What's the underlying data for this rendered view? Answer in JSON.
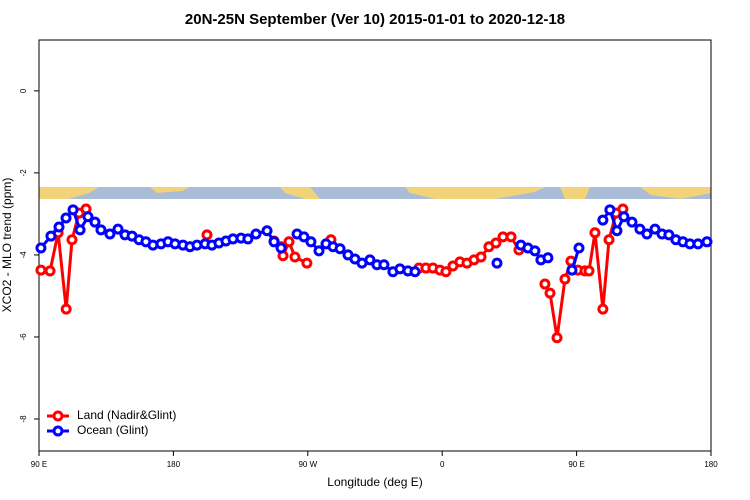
{
  "chart_data": {
    "type": "line",
    "title": "20N-25N September (Ver 10)   2015-01-01 to 2020-12-18",
    "x_label": "Longitude (deg E)",
    "y_label": "XCO2 - MLO trend (ppm)",
    "xlim": [
      90,
      540
    ],
    "xticks": [
      {
        "value": 90,
        "label": "90 E"
      },
      180,
      {
        "value": 270,
        "label": "90 W"
      },
      {
        "value": 360,
        "label": "0"
      },
      {
        "value": 450,
        "label": "90 E"
      },
      {
        "value": 540,
        "label": "180"
      }
    ],
    "ylim": [
      -8.78,
      1.24
    ],
    "yticks": [
      -8,
      -6,
      -4,
      -2,
      0
    ],
    "grid": false,
    "legend": "bottomleft",
    "series": [
      {
        "name": "Land (Nadir&Glint)",
        "color": "#ff0000",
        "x": [
          91.3,
          97.4,
          102.8,
          108.2,
          112.1,
          116.8,
          121.5,
          null,
          202.5,
          null,
          247.4,
          252.1,
          253.4,
          257.4,
          261.4,
          269.4,
          null,
          285.5,
          null,
          344.4,
          349.1,
          353.8,
          358.5,
          362.5,
          367.2,
          371.9,
          376.6,
          381.3,
          386.0,
          391.3,
          396.0,
          400.7,
          406.1,
          411.4,
          null,
          428.8,
          432.2,
          436.9,
          442.2,
          446.2,
          450.9,
          455.6,
          458.3,
          462.3,
          467.6,
          471.7,
          476.4,
          481.0
        ],
        "values": [
          -4.37,
          -4.39,
          -3.46,
          -5.32,
          -3.63,
          -2.98,
          -2.88,
          null,
          -3.51,
          null,
          -3.66,
          -3.8,
          -4.02,
          -3.68,
          -4.05,
          -4.2,
          null,
          -3.63,
          null,
          -4.32,
          -4.32,
          -4.32,
          -4.37,
          -4.41,
          -4.27,
          -4.17,
          -4.2,
          -4.12,
          -4.05,
          -3.8,
          -3.71,
          -3.56,
          -3.56,
          -3.88,
          null,
          -4.71,
          -4.93,
          -6.02,
          -4.59,
          -4.15,
          -4.37,
          -4.39,
          -4.39,
          -3.46,
          -5.32,
          -3.63,
          -2.98,
          -2.88
        ]
      },
      {
        "name": "Ocean (Glint)",
        "color": "#0000ff",
        "x": [
          91.3,
          98.0,
          103.4,
          108.1,
          112.8,
          117.5,
          122.8,
          127.5,
          131.5,
          137.5,
          142.9,
          147.6,
          152.3,
          157.0,
          161.6,
          166.3,
          171.7,
          176.4,
          181.1,
          186.4,
          191.1,
          195.8,
          201.2,
          205.8,
          210.5,
          215.2,
          219.9,
          225.3,
          229.9,
          235.3,
          242.7,
          247.4,
          252.1,
          null,
          262.8,
          267.4,
          272.1,
          277.5,
          282.2,
          286.9,
          291.6,
          296.9,
          301.6,
          306.3,
          311.6,
          316.3,
          321.0,
          327.0,
          331.7,
          337.1,
          341.8,
          null,
          396.7,
          null,
          412.7,
          417.4,
          422.1,
          426.1,
          430.8,
          null,
          446.9,
          451.6,
          null,
          467.6,
          472.3,
          477.0,
          481.7,
          487.1,
          492.4,
          497.1,
          502.5,
          507.2,
          511.8,
          516.5,
          521.2,
          525.9,
          531.3,
          537.3
        ],
        "values": [
          -3.83,
          -3.54,
          -3.32,
          -3.1,
          -2.9,
          -3.39,
          -3.07,
          -3.2,
          -3.39,
          -3.49,
          -3.37,
          -3.51,
          -3.54,
          -3.63,
          -3.68,
          -3.76,
          -3.73,
          -3.68,
          -3.73,
          -3.76,
          -3.8,
          -3.76,
          -3.73,
          -3.76,
          -3.71,
          -3.66,
          -3.61,
          -3.59,
          -3.61,
          -3.49,
          -3.41,
          -3.68,
          -3.83,
          null,
          -3.49,
          -3.56,
          -3.68,
          -3.9,
          -3.73,
          -3.8,
          -3.85,
          -4.0,
          -4.1,
          -4.2,
          -4.12,
          -4.24,
          -4.24,
          -4.41,
          -4.34,
          -4.39,
          -4.41,
          null,
          -4.2,
          null,
          -3.76,
          -3.83,
          -3.9,
          -4.12,
          -4.07,
          null,
          -4.37,
          -3.83,
          null,
          -3.15,
          -2.9,
          -3.41,
          -3.07,
          -3.2,
          -3.37,
          -3.49,
          -3.37,
          -3.49,
          -3.51,
          -3.63,
          -3.68,
          -3.73,
          -3.73,
          -3.68
        ]
      }
    ]
  }
}
